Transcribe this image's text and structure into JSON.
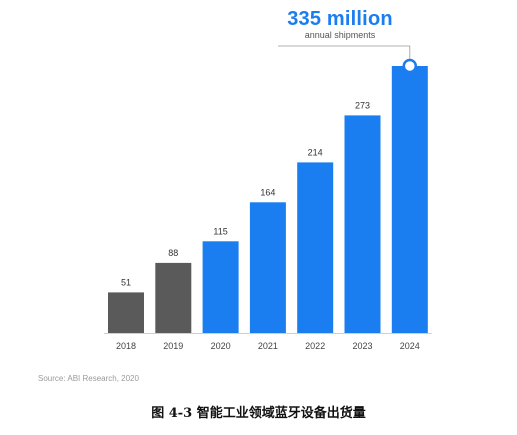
{
  "headline": {
    "value": "335 million",
    "subtitle": "annual shipments"
  },
  "source": "Source: ABI Research, 2020",
  "caption": "图 4-3 智能工业领域蓝牙设备出货量",
  "colors": {
    "historical_bar": "#5a5a5a",
    "forecast_bar": "#1a7df0",
    "headline": "#1a7df0",
    "axis_line": "#cfcfcf",
    "marker_fill": "#ffffff"
  },
  "chart_data": {
    "type": "bar",
    "categories": [
      "2018",
      "2019",
      "2020",
      "2021",
      "2022",
      "2023",
      "2024"
    ],
    "values": [
      51,
      88,
      115,
      164,
      214,
      273,
      335
    ],
    "data_labels": [
      "51",
      "88",
      "115",
      "164",
      "214",
      "273",
      ""
    ],
    "historical_count": 2,
    "ylim": [
      0,
      335
    ],
    "title": "",
    "xlabel": "",
    "ylabel": "",
    "grid": false,
    "legend": "none"
  }
}
